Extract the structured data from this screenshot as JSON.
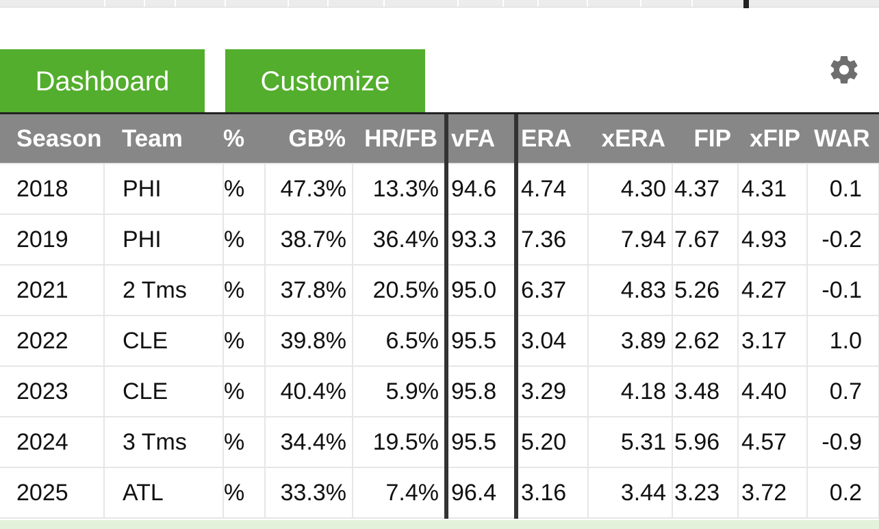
{
  "tabs": {
    "dashboard": "Dashboard",
    "customize": "Customize"
  },
  "icons": {
    "settings": "gear-icon"
  },
  "colors": {
    "tab_green": "#52ae2c",
    "header_gray": "#878787"
  },
  "table": {
    "headers": [
      "Season",
      "Team",
      "%",
      "GB%",
      "HR/FB",
      "vFA",
      "ERA",
      "xERA",
      "FIP",
      "xFIP",
      "WAR"
    ],
    "rows": [
      [
        "2018",
        "PHI",
        "%",
        "47.3%",
        "13.3%",
        "94.6",
        "4.74",
        "4.30",
        "4.37",
        "4.31",
        "0.1"
      ],
      [
        "2019",
        "PHI",
        "%",
        "38.7%",
        "36.4%",
        "93.3",
        "7.36",
        "7.94",
        "7.67",
        "4.93",
        "-0.2"
      ],
      [
        "2021",
        "2 Tms",
        "%",
        "37.8%",
        "20.5%",
        "95.0",
        "6.37",
        "4.83",
        "5.26",
        "4.27",
        "-0.1"
      ],
      [
        "2022",
        "CLE",
        "%",
        "39.8%",
        "6.5%",
        "95.5",
        "3.04",
        "3.89",
        "2.62",
        "3.17",
        "1.0"
      ],
      [
        "2023",
        "CLE",
        "%",
        "40.4%",
        "5.9%",
        "95.8",
        "3.29",
        "4.18",
        "3.48",
        "4.40",
        "0.7"
      ],
      [
        "2024",
        "3 Tms",
        "%",
        "34.4%",
        "19.5%",
        "95.5",
        "5.20",
        "5.31",
        "5.96",
        "4.57",
        "-0.9"
      ],
      [
        "2025",
        "ATL",
        "%",
        "33.3%",
        "7.4%",
        "96.4",
        "3.16",
        "3.44",
        "3.23",
        "3.72",
        "0.2"
      ]
    ]
  }
}
